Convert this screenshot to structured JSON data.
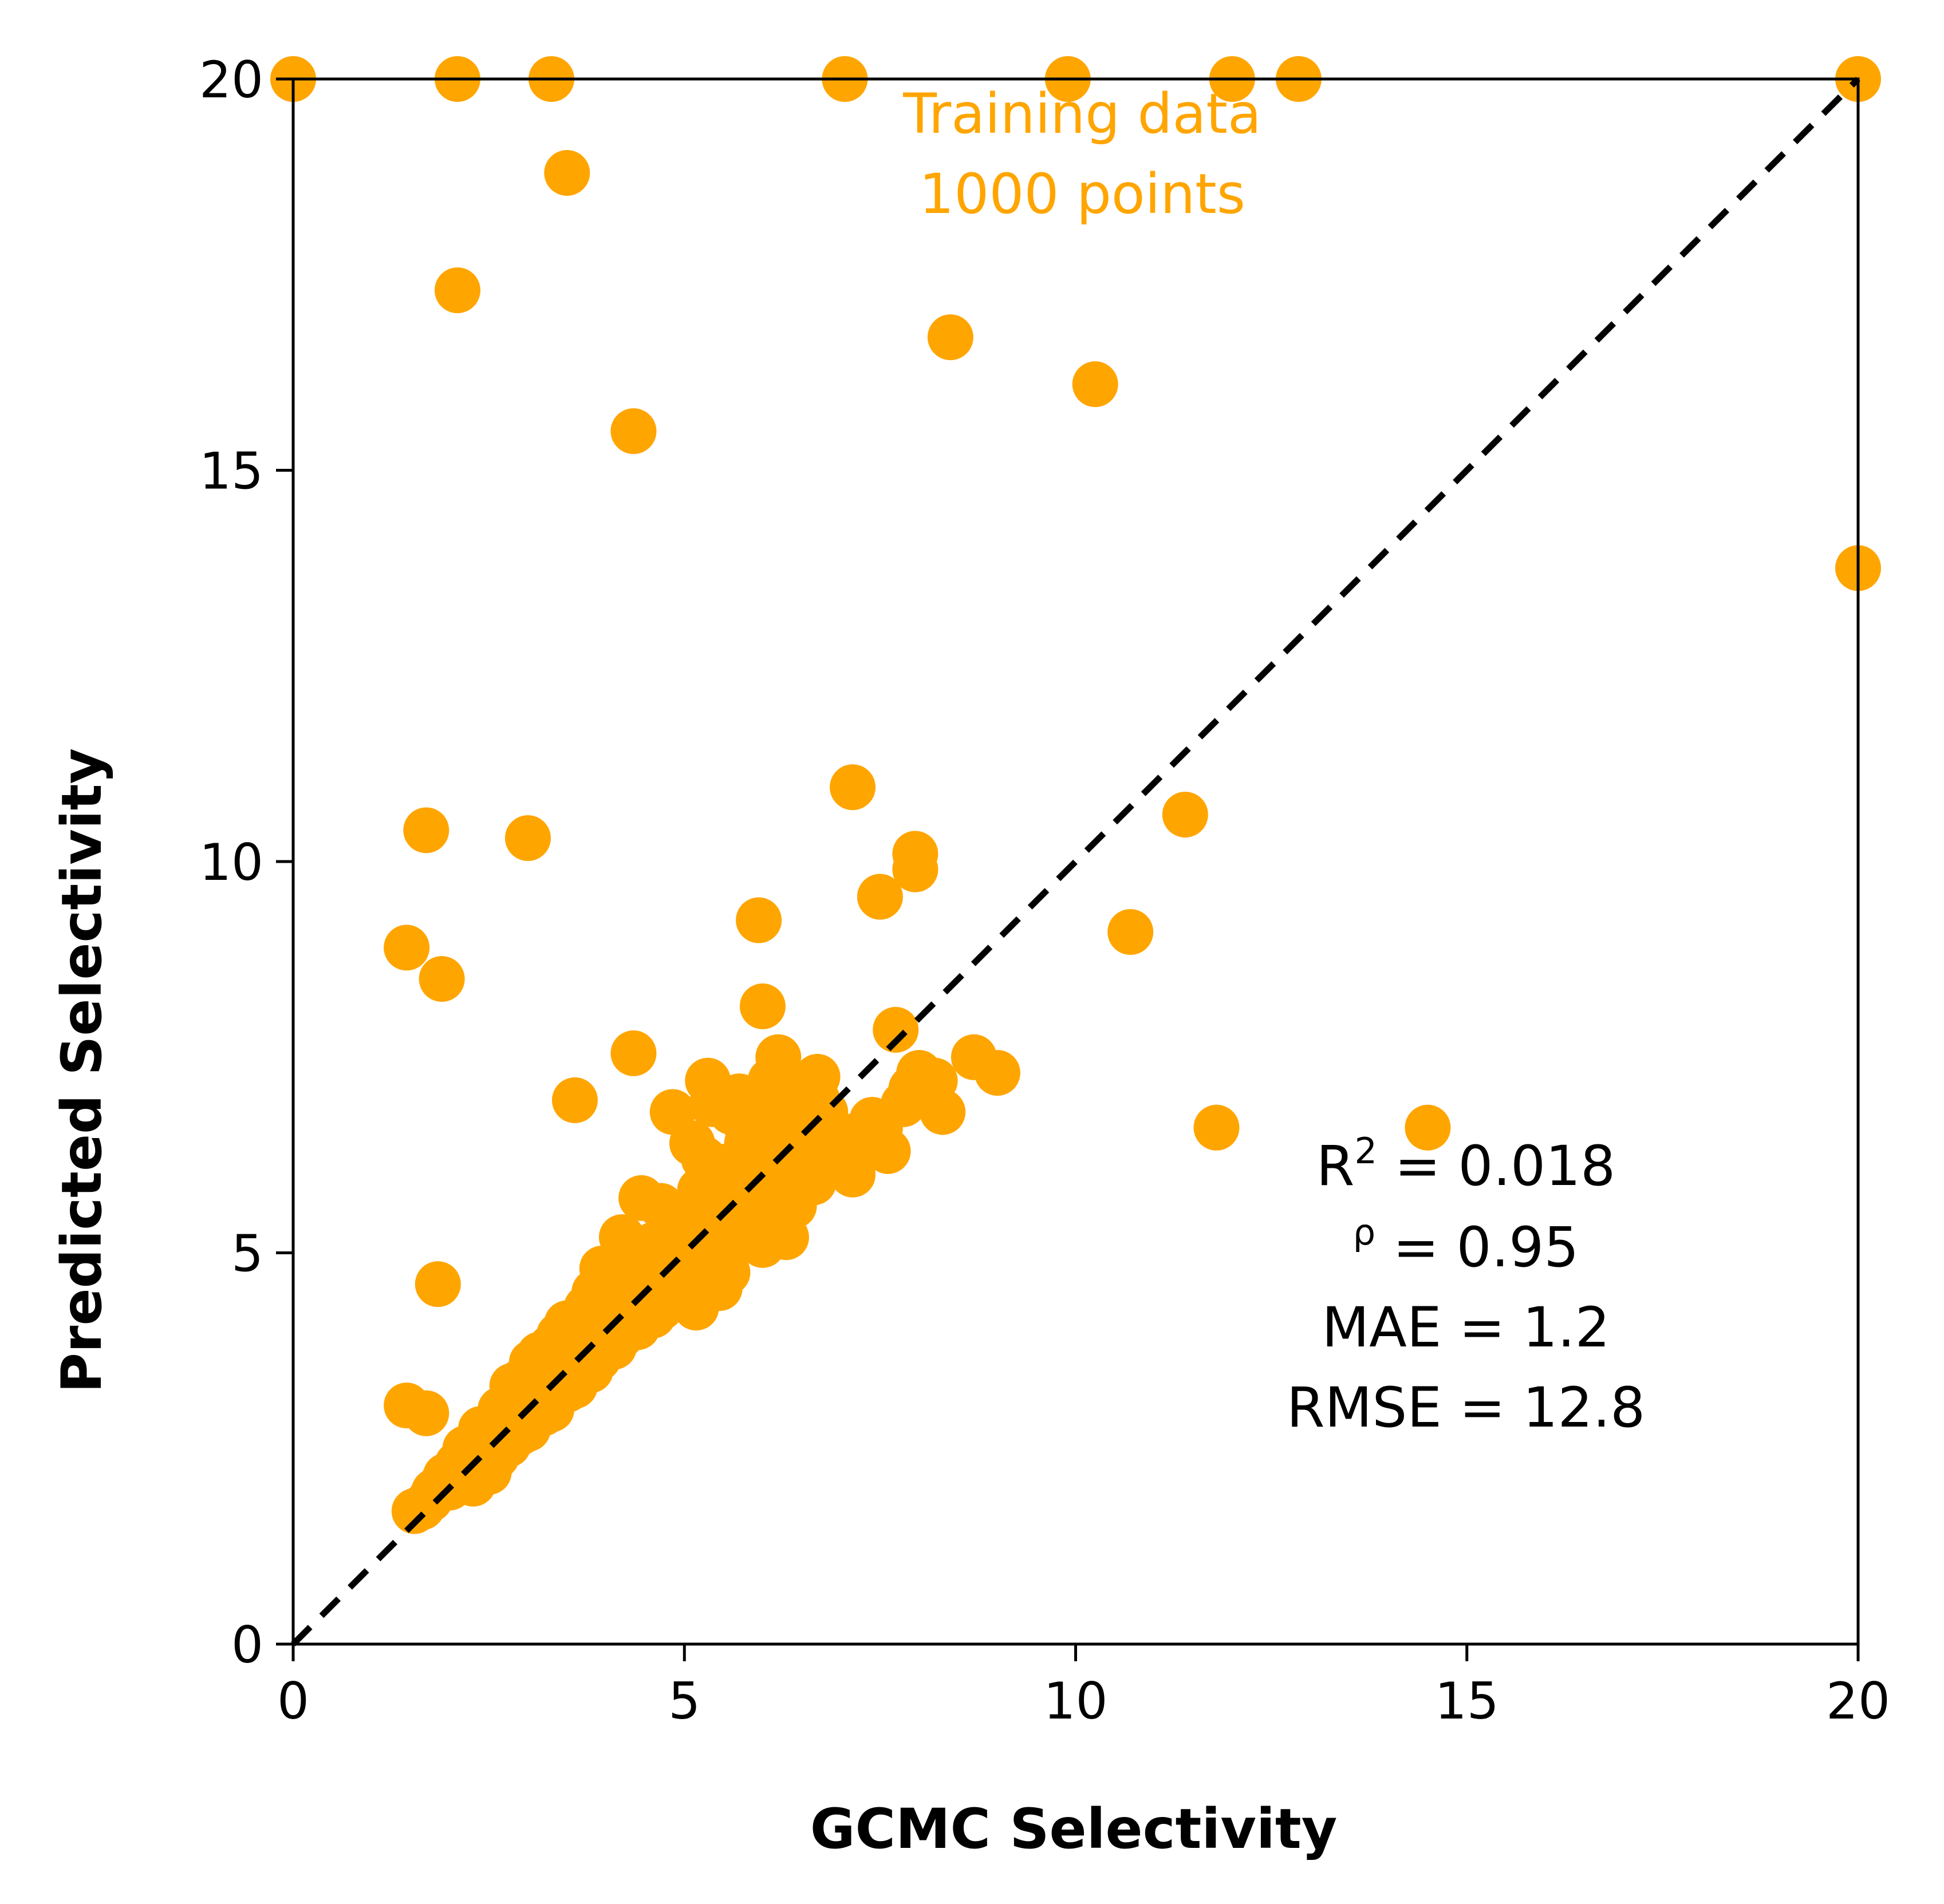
{
  "chart_data": {
    "type": "scatter",
    "xlabel": "GCMC Selectivity",
    "ylabel": "Predicted Selectivity",
    "xlim": [
      0,
      20
    ],
    "ylim": [
      0,
      20
    ],
    "xticks": [
      "0",
      "5",
      "10",
      "15",
      "20"
    ],
    "yticks": [
      "0",
      "5",
      "10",
      "15",
      "20"
    ],
    "grid": false,
    "point_color": "#FFA500",
    "reference_line": {
      "style": "dashed",
      "color": "#000000",
      "from": [
        0,
        0
      ],
      "to": [
        20,
        20
      ]
    },
    "annotation_training": {
      "line1": "Training data",
      "line2": "1000 points",
      "color": "#FFA500"
    },
    "stats": {
      "r2_label": "R",
      "r2_sup": "2",
      "r2_value": " = 0.018",
      "rho_sup": "ρ",
      "rho_value": " = 0.95",
      "mae": "MAE = 1.2",
      "rmse": "RMSE = 12.8"
    },
    "points": [
      [
        0.0,
        20.0
      ],
      [
        2.1,
        20.0
      ],
      [
        3.3,
        20.0
      ],
      [
        7.05,
        20.0
      ],
      [
        9.9,
        20.0
      ],
      [
        12.0,
        20.0
      ],
      [
        12.85,
        20.0
      ],
      [
        20.0,
        20.0
      ],
      [
        3.5,
        18.8
      ],
      [
        2.1,
        17.3
      ],
      [
        8.4,
        16.7
      ],
      [
        10.25,
        16.1
      ],
      [
        4.35,
        15.5
      ],
      [
        20.0,
        13.75
      ],
      [
        7.15,
        10.95
      ],
      [
        11.4,
        10.6
      ],
      [
        1.7,
        10.4
      ],
      [
        3.0,
        10.3
      ],
      [
        7.95,
        10.1
      ],
      [
        7.95,
        9.9
      ],
      [
        7.5,
        9.55
      ],
      [
        5.95,
        9.25
      ],
      [
        10.7,
        9.1
      ],
      [
        1.45,
        8.9
      ],
      [
        1.9,
        8.5
      ],
      [
        6.0,
        8.15
      ],
      [
        7.7,
        7.85
      ],
      [
        4.35,
        7.55
      ],
      [
        3.6,
        6.95
      ],
      [
        11.8,
        6.6
      ],
      [
        14.5,
        6.6
      ],
      [
        1.85,
        4.6
      ],
      [
        1.45,
        3.05
      ],
      [
        1.7,
        2.95
      ],
      [
        8.7,
        7.5
      ],
      [
        9.0,
        7.3
      ],
      [
        8.3,
        6.8
      ],
      [
        8.0,
        7.3
      ],
      [
        7.6,
        6.3
      ],
      [
        7.15,
        6.0
      ],
      [
        6.7,
        7.25
      ],
      [
        6.2,
        7.5
      ],
      [
        5.3,
        7.2
      ],
      [
        4.85,
        6.8
      ],
      [
        5.1,
        6.4
      ],
      [
        5.6,
        6.8
      ],
      [
        6.0,
        6.5
      ],
      [
        6.5,
        6.6
      ],
      [
        6.8,
        6.8
      ],
      [
        5.9,
        6.0
      ],
      [
        6.4,
        5.6
      ],
      [
        6.3,
        5.2
      ],
      [
        6.0,
        5.1
      ],
      [
        5.45,
        4.55
      ],
      [
        4.6,
        4.2
      ],
      [
        4.45,
        5.7
      ],
      [
        4.2,
        5.2
      ],
      [
        3.95,
        4.8
      ],
      [
        3.75,
        4.3
      ],
      [
        3.5,
        4.1
      ],
      [
        3.3,
        3.8
      ],
      [
        3.05,
        3.6
      ],
      [
        2.8,
        3.3
      ],
      [
        2.55,
        2.8
      ],
      [
        2.35,
        2.6
      ],
      [
        2.1,
        2.3
      ],
      [
        1.95,
        2.15
      ],
      [
        1.8,
        1.95
      ],
      [
        1.55,
        1.7
      ],
      [
        1.65,
        1.75
      ],
      [
        2.0,
        2.0
      ],
      [
        2.3,
        2.05
      ],
      [
        2.5,
        2.2
      ],
      [
        2.75,
        2.55
      ],
      [
        3.0,
        2.75
      ],
      [
        3.3,
        3.0
      ],
      [
        3.6,
        3.3
      ],
      [
        3.9,
        3.65
      ],
      [
        4.2,
        3.95
      ],
      [
        4.5,
        4.2
      ],
      [
        4.8,
        4.4
      ],
      [
        5.1,
        4.9
      ],
      [
        5.4,
        5.1
      ],
      [
        5.7,
        5.4
      ],
      [
        6.0,
        5.7
      ],
      [
        6.3,
        6.0
      ],
      [
        6.6,
        6.3
      ],
      [
        6.9,
        6.4
      ],
      [
        7.2,
        6.5
      ],
      [
        7.5,
        6.6
      ],
      [
        7.8,
        6.9
      ],
      [
        2.2,
        2.45
      ],
      [
        2.45,
        2.7
      ],
      [
        2.7,
        2.95
      ],
      [
        2.95,
        3.2
      ],
      [
        3.2,
        3.45
      ],
      [
        3.45,
        3.7
      ],
      [
        3.7,
        3.95
      ],
      [
        3.95,
        4.2
      ],
      [
        4.2,
        4.45
      ],
      [
        4.45,
        4.7
      ],
      [
        4.7,
        4.95
      ],
      [
        4.95,
        5.2
      ],
      [
        5.2,
        5.45
      ],
      [
        5.45,
        5.7
      ],
      [
        5.7,
        5.95
      ],
      [
        5.95,
        6.2
      ],
      [
        6.2,
        6.45
      ],
      [
        6.45,
        6.7
      ],
      [
        6.7,
        6.95
      ],
      [
        2.6,
        2.4
      ],
      [
        2.9,
        2.7
      ],
      [
        3.2,
        2.95
      ],
      [
        3.5,
        3.25
      ],
      [
        3.8,
        3.5
      ],
      [
        4.1,
        3.8
      ],
      [
        4.4,
        4.05
      ],
      [
        4.7,
        4.3
      ],
      [
        5.0,
        4.6
      ],
      [
        5.3,
        4.85
      ],
      [
        5.6,
        5.1
      ],
      [
        5.9,
        5.35
      ],
      [
        6.2,
        5.6
      ],
      [
        6.5,
        5.85
      ],
      [
        6.8,
        6.1
      ],
      [
        7.1,
        6.35
      ],
      [
        7.4,
        6.7
      ],
      [
        4.0,
        4.4
      ],
      [
        4.3,
        4.9
      ],
      [
        4.6,
        5.1
      ],
      [
        4.9,
        5.5
      ],
      [
        5.2,
        5.8
      ],
      [
        5.5,
        6.1
      ],
      [
        5.8,
        6.6
      ],
      [
        6.1,
        6.9
      ],
      [
        5.35,
        6.9
      ],
      [
        5.7,
        7.0
      ],
      [
        6.1,
        7.2
      ],
      [
        6.5,
        7.05
      ],
      [
        4.7,
        5.6
      ],
      [
        4.05,
        4.65
      ],
      [
        3.85,
        4.5
      ],
      [
        3.4,
        3.95
      ],
      [
        3.15,
        3.7
      ],
      [
        2.9,
        3.35
      ],
      [
        2.65,
        3.0
      ],
      [
        2.4,
        2.75
      ],
      [
        2.2,
        2.5
      ],
      [
        1.75,
        1.85
      ],
      [
        1.9,
        2.05
      ],
      [
        2.05,
        2.1
      ],
      [
        2.25,
        2.3
      ],
      [
        5.15,
        4.3
      ],
      [
        5.55,
        4.75
      ],
      [
        6.65,
        5.9
      ],
      [
        7.0,
        6.2
      ],
      [
        7.35,
        6.45
      ],
      [
        7.9,
        7.1
      ],
      [
        8.2,
        7.2
      ],
      [
        5.0,
        5.2
      ],
      [
        5.6,
        5.6
      ],
      [
        6.0,
        6.0
      ],
      [
        6.35,
        6.3
      ],
      [
        6.75,
        6.55
      ],
      [
        4.5,
        4.6
      ],
      [
        3.6,
        3.7
      ],
      [
        3.1,
        3.15
      ],
      [
        2.6,
        2.65
      ],
      [
        2.35,
        2.4
      ],
      [
        5.25,
        6.2
      ],
      [
        5.8,
        6.4
      ],
      [
        6.25,
        6.75
      ],
      [
        4.25,
        4.2
      ],
      [
        4.8,
        4.75
      ],
      [
        5.4,
        5.3
      ],
      [
        3.75,
        3.55
      ],
      [
        3.3,
        3.25
      ],
      [
        2.85,
        2.85
      ]
    ]
  }
}
